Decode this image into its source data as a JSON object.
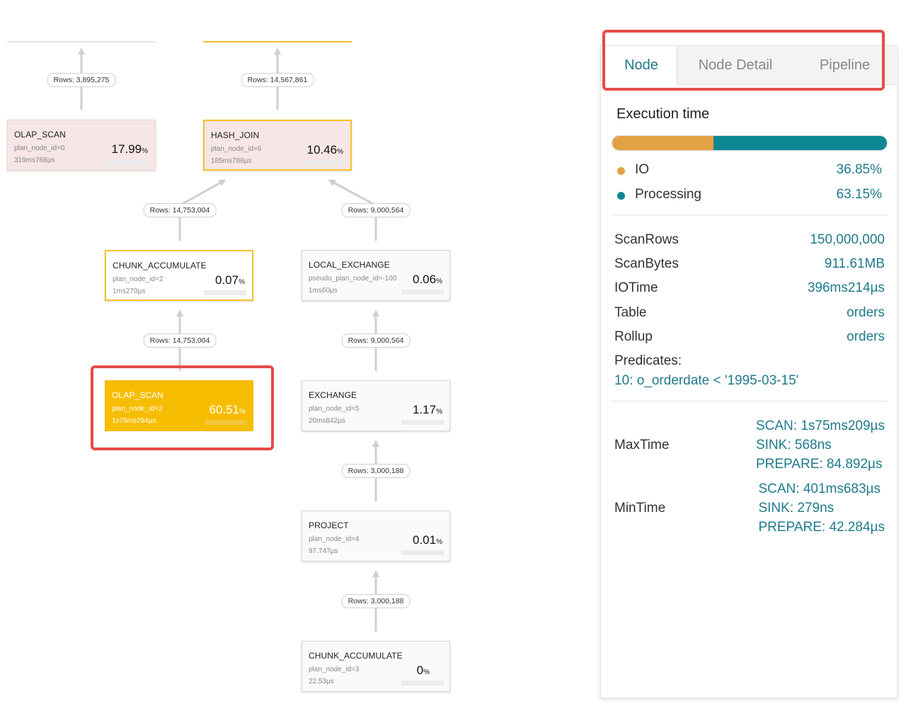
{
  "graph": {
    "edges": [
      {
        "label": "Rows: 3,895,275"
      },
      {
        "label": "Rows: 14,567,861"
      },
      {
        "label": "Rows: 14,753,004"
      },
      {
        "label": "Rows: 9,000,564"
      },
      {
        "label": "Rows: 14,753,004"
      },
      {
        "label": "Rows: 9,000,564"
      },
      {
        "label": "Rows: 3,000,188"
      },
      {
        "label": "Rows: 3,000,188"
      }
    ],
    "nodes": [
      {
        "name": "OLAP_SCAN",
        "id": "plan_node_id=0",
        "time": "319ms768µs",
        "pct": "17.99",
        "unit": "%"
      },
      {
        "name": "HASH_JOIN",
        "id": "plan_node_id=6",
        "time": "185ms786µs",
        "pct": "10.46",
        "unit": "%"
      },
      {
        "name": "CHUNK_ACCUMULATE",
        "id": "plan_node_id=2",
        "time": "1ms270µs",
        "pct": "0.07",
        "unit": "%"
      },
      {
        "name": "LOCAL_EXCHANGE",
        "id": "pseudo_plan_node_id=-100",
        "time": "1ms60µs",
        "pct": "0.06",
        "unit": "%"
      },
      {
        "name": "OLAP_SCAN",
        "id": "plan_node_id=2",
        "time": "1s75ms294µs",
        "pct": "60.51",
        "unit": "%"
      },
      {
        "name": "EXCHANGE",
        "id": "plan_node_id=5",
        "time": "20ms842µs",
        "pct": "1.17",
        "unit": "%"
      },
      {
        "name": "PROJECT",
        "id": "plan_node_id=4",
        "time": "97.747µs",
        "pct": "0.01",
        "unit": "%"
      },
      {
        "name": "CHUNK_ACCUMULATE",
        "id": "plan_node_id=3",
        "time": "22.53µs",
        "pct": "0",
        "unit": "%"
      }
    ]
  },
  "panel": {
    "tabs": [
      {
        "label": "Node",
        "active": true
      },
      {
        "label": "Node Detail",
        "active": false
      },
      {
        "label": "Pipeline",
        "active": false
      }
    ],
    "execution_title": "Execution time",
    "execution": {
      "io_fraction": 0.3685,
      "io_color": "#e3a146",
      "processing_color": "#0d8792",
      "io_label": "IO",
      "io_value": "36.85%",
      "processing_label": "Processing",
      "processing_value": "63.15%"
    },
    "metrics": [
      {
        "key": "ScanRows",
        "value": "150,000,000"
      },
      {
        "key": "ScanBytes",
        "value": "911.61MB"
      },
      {
        "key": "IOTime",
        "value": "396ms214µs"
      },
      {
        "key": "Table",
        "value": "orders"
      },
      {
        "key": "Rollup",
        "value": "orders"
      }
    ],
    "predicates_label": "Predicates:",
    "predicates_value": "10: o_orderdate < '1995-03-15'",
    "max_time": {
      "label": "MaxTime",
      "scan": "SCAN: 1s75ms209µs",
      "sink": "SINK: 568ns",
      "prepare": "PREPARE: 84.892µs"
    },
    "min_time": {
      "label": "MinTime",
      "scan": "SCAN: 401ms683µs",
      "sink": "SINK: 279ns",
      "prepare": "PREPARE: 42.284µs"
    }
  }
}
